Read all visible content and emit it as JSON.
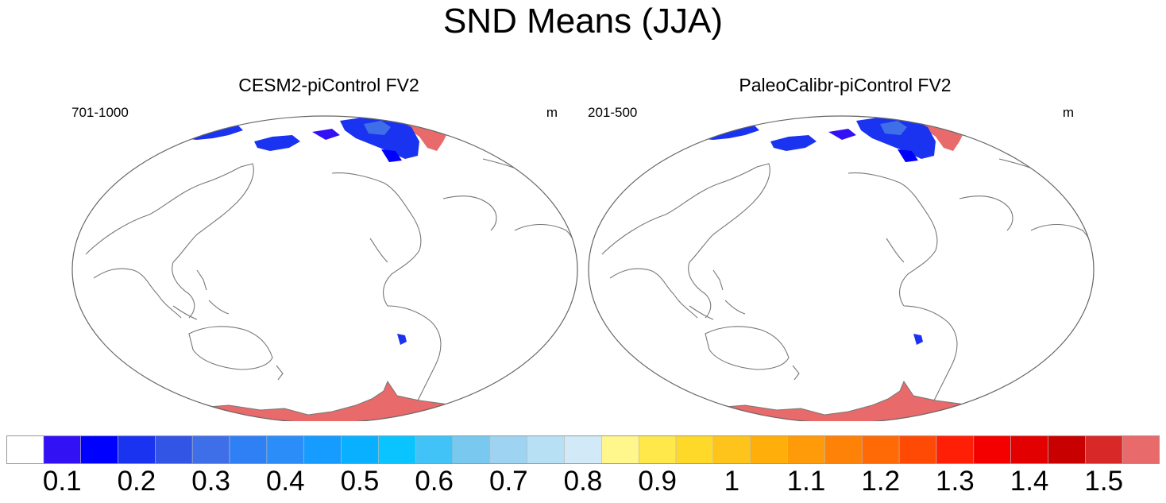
{
  "page": {
    "title": "SND Means (JJA)"
  },
  "panels": [
    {
      "id": "left",
      "title": "CESM2-piControl FV2",
      "years": "701-1000",
      "units": "m"
    },
    {
      "id": "right",
      "title": "PaleoCalibr-piControl FV2",
      "years": "201-500",
      "units": "m"
    }
  ],
  "colorbar": {
    "colors": [
      "#ffffff",
      "#3311f5",
      "#0000ff",
      "#1a33f0",
      "#3355e6",
      "#3f6fe8",
      "#2f7ff5",
      "#2b8ef8",
      "#169cff",
      "#09b0ff",
      "#0ac4ff",
      "#42c3f7",
      "#78c8f0",
      "#9ed4f2",
      "#b8e0f5",
      "#d2eaf8",
      "#fff68c",
      "#ffe84a",
      "#ffd92a",
      "#ffc41c",
      "#ffae0a",
      "#ff9a08",
      "#ff8208",
      "#ff6a06",
      "#ff4a06",
      "#ff1e06",
      "#f50000",
      "#e30000",
      "#c80000",
      "#d92828",
      "#e86a6a"
    ],
    "labels": [
      "0.1",
      "0.2",
      "0.3",
      "0.4",
      "0.5",
      "0.6",
      "0.7",
      "0.8",
      "0.9",
      "1",
      "1.1",
      "1.2",
      "1.3",
      "1.4",
      "1.5"
    ]
  },
  "chart_data": {
    "type": "heatmap",
    "title": "SND Means (JJA)",
    "variable": "SND",
    "units": "m",
    "colorbar_levels": [
      0.1,
      0.15,
      0.2,
      0.25,
      0.3,
      0.35,
      0.4,
      0.45,
      0.5,
      0.55,
      0.6,
      0.65,
      0.7,
      0.75,
      0.8,
      0.85,
      0.9,
      0.95,
      1.0,
      1.05,
      1.1,
      1.15,
      1.2,
      1.25,
      1.3,
      1.35,
      1.4,
      1.45,
      1.5
    ],
    "colorbar_tick_labels": [
      "0.1",
      "0.2",
      "0.3",
      "0.4",
      "0.5",
      "0.6",
      "0.7",
      "0.8",
      "0.9",
      "1",
      "1.1",
      "1.2",
      "1.3",
      "1.4",
      "1.5"
    ],
    "panels": [
      {
        "title": "CESM2-piControl FV2",
        "years": "701-1000",
        "units": "m"
      },
      {
        "title": "PaleoCalibr-piControl FV2",
        "years": "201-500",
        "units": "m"
      }
    ]
  }
}
